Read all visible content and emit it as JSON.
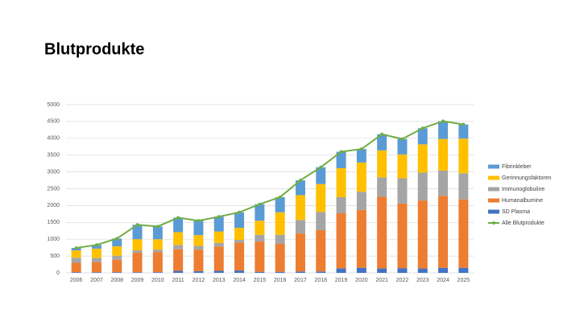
{
  "chart_data": {
    "type": "bar",
    "stacked": true,
    "title": "Blutprodukte",
    "categories": [
      "2006",
      "2007",
      "2008",
      "2009",
      "2010",
      "2011",
      "2012",
      "2013",
      "2014",
      "2015",
      "2016",
      "2017",
      "2018",
      "2019",
      "2020",
      "2021",
      "2022",
      "2023",
      "2024",
      "2025"
    ],
    "series": [
      {
        "name": "SD Plasma",
        "color": "#4472c4",
        "values": [
          20,
          20,
          20,
          20,
          20,
          60,
          50,
          60,
          70,
          30,
          30,
          40,
          40,
          130,
          150,
          130,
          140,
          130,
          150,
          150
        ]
      },
      {
        "name": "Humanalbumine",
        "color": "#ed7d31",
        "values": [
          280,
          300,
          370,
          580,
          600,
          640,
          640,
          720,
          830,
          900,
          830,
          1130,
          1230,
          1640,
          1720,
          2130,
          1920,
          2020,
          2140,
          2030
        ]
      },
      {
        "name": "Immunoglobuline",
        "color": "#a5a5a5",
        "values": [
          150,
          120,
          120,
          70,
          70,
          130,
          110,
          110,
          80,
          200,
          270,
          400,
          540,
          480,
          540,
          580,
          750,
          830,
          750,
          780
        ]
      },
      {
        "name": "Gerinnungsfaktoren",
        "color": "#ffc000",
        "values": [
          220,
          280,
          280,
          330,
          310,
          380,
          320,
          340,
          360,
          420,
          670,
          740,
          830,
          860,
          870,
          800,
          710,
          840,
          940,
          1030
        ]
      },
      {
        "name": "Fibrinkleber",
        "color": "#5b9bd5",
        "values": [
          70,
          110,
          230,
          430,
          380,
          430,
          430,
          440,
          460,
          490,
          450,
          440,
          500,
          490,
          400,
          480,
          460,
          480,
          530,
          420
        ]
      },
      {
        "name": "Alle Blutprodukte",
        "color": "#70ad47",
        "type": "line",
        "values": [
          740,
          830,
          1020,
          1430,
          1380,
          1640,
          1550,
          1670,
          1800,
          2040,
          2250,
          2750,
          3140,
          3600,
          3680,
          4120,
          3980,
          4300,
          4510,
          4410
        ]
      }
    ],
    "ylim": [
      0,
      5000
    ],
    "yticks": [
      0,
      500,
      1000,
      1500,
      2000,
      2500,
      3000,
      3500,
      4000,
      4500,
      5000
    ],
    "grid": true,
    "legend": "right"
  }
}
